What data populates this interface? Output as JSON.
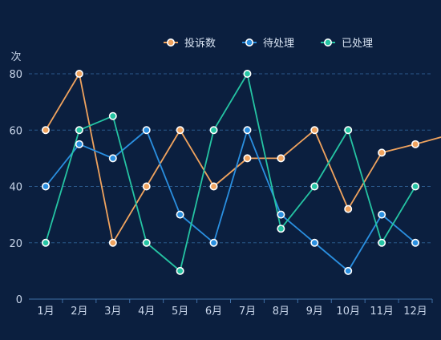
{
  "chart_data": {
    "type": "line",
    "y_unit_label": "次",
    "categories": [
      "1月",
      "2月",
      "3月",
      "4月",
      "5月",
      "6月",
      "7月",
      "8月",
      "9月",
      "10月",
      "11月",
      "12月"
    ],
    "ylim": [
      0,
      80
    ],
    "yticks": [
      0,
      20,
      40,
      60,
      80
    ],
    "grid": "horizontal dashed",
    "legend_position": "top-center",
    "series": [
      {
        "name": "投诉数",
        "color": "#f0a35e",
        "values": [
          60,
          80,
          20,
          40,
          60,
          40,
          50,
          50,
          60,
          32,
          52,
          55
        ],
        "trailing_value": 57.5
      },
      {
        "name": "待处理",
        "color": "#2a8fe0",
        "values": [
          40,
          55,
          50,
          60,
          30,
          20,
          60,
          30,
          20,
          10,
          30,
          20
        ]
      },
      {
        "name": "已处理",
        "color": "#25c4a3",
        "values": [
          20,
          60,
          65,
          20,
          10,
          60,
          80,
          25,
          40,
          60,
          20,
          40
        ]
      }
    ]
  }
}
